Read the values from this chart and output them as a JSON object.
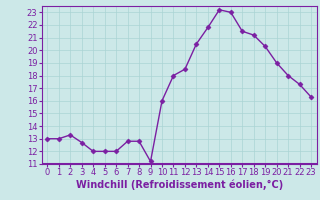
{
  "x": [
    0,
    1,
    2,
    3,
    4,
    5,
    6,
    7,
    8,
    9,
    10,
    11,
    12,
    13,
    14,
    15,
    16,
    17,
    18,
    19,
    20,
    21,
    22,
    23
  ],
  "y": [
    13,
    13,
    13.3,
    12.7,
    12,
    12,
    12,
    12.8,
    12.8,
    11.2,
    16,
    18,
    18.5,
    20.5,
    21.8,
    23.2,
    23.0,
    21.5,
    21.2,
    20.3,
    19.0,
    18.0,
    17.3,
    16.3
  ],
  "xlabel": "Windchill (Refroidissement éolien,°C)",
  "xlim": [
    -0.5,
    23.5
  ],
  "ylim": [
    11,
    23.5
  ],
  "yticks": [
    11,
    12,
    13,
    14,
    15,
    16,
    17,
    18,
    19,
    20,
    21,
    22,
    23
  ],
  "xticks": [
    0,
    1,
    2,
    3,
    4,
    5,
    6,
    7,
    8,
    9,
    10,
    11,
    12,
    13,
    14,
    15,
    16,
    17,
    18,
    19,
    20,
    21,
    22,
    23
  ],
  "line_color": "#7b1fa2",
  "marker": "D",
  "marker_size": 2.5,
  "line_width": 1.0,
  "bg_color": "#cce8e8",
  "grid_color": "#aad4d4",
  "tick_fontsize": 6.0,
  "xlabel_fontsize": 7.0,
  "spine_color": "#7b1fa2",
  "tick_color": "#7b1fa2",
  "bottom_bar_color": "#7b1fa2"
}
